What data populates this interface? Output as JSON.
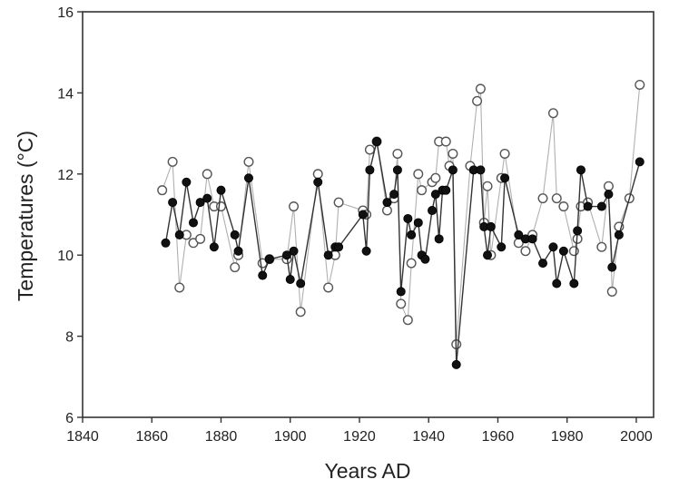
{
  "chart_data": {
    "type": "scatter",
    "xlabel": "Years AD",
    "ylabel": "Temperatures (°C)",
    "xlim": [
      1840,
      2005
    ],
    "ylim": [
      6,
      16
    ],
    "x_ticks": [
      1840,
      1860,
      1880,
      1900,
      1920,
      1940,
      1960,
      1980,
      2000
    ],
    "y_ticks": [
      6,
      8,
      10,
      12,
      14,
      16
    ],
    "grid": false,
    "series": [
      {
        "marker": "filled-circle",
        "line_color": "#333333",
        "marker_color": "#111111",
        "points": [
          [
            1864,
            10.3
          ],
          [
            1866,
            11.3
          ],
          [
            1868,
            10.5
          ],
          [
            1870,
            11.8
          ],
          [
            1872,
            10.8
          ],
          [
            1874,
            11.3
          ],
          [
            1876,
            11.4
          ],
          [
            1878,
            10.2
          ],
          [
            1880,
            11.6
          ],
          [
            1884,
            10.5
          ],
          [
            1885,
            10.1
          ],
          [
            1888,
            11.9
          ],
          [
            1892,
            9.5
          ],
          [
            1894,
            9.9
          ],
          [
            1899,
            10.0
          ],
          [
            1900,
            9.4
          ],
          [
            1901,
            10.1
          ],
          [
            1903,
            9.3
          ],
          [
            1908,
            11.8
          ],
          [
            1911,
            10.0
          ],
          [
            1913,
            10.2
          ],
          [
            1914,
            10.2
          ],
          [
            1921,
            11.0
          ],
          [
            1922,
            10.1
          ],
          [
            1923,
            12.1
          ],
          [
            1925,
            12.8
          ],
          [
            1928,
            11.3
          ],
          [
            1930,
            11.5
          ],
          [
            1931,
            12.1
          ],
          [
            1932,
            9.1
          ],
          [
            1934,
            10.9
          ],
          [
            1935,
            10.5
          ],
          [
            1937,
            10.8
          ],
          [
            1938,
            10.0
          ],
          [
            1939,
            9.9
          ],
          [
            1941,
            11.1
          ],
          [
            1942,
            11.5
          ],
          [
            1943,
            10.4
          ],
          [
            1944,
            11.6
          ],
          [
            1945,
            11.6
          ],
          [
            1947,
            12.1
          ],
          [
            1948,
            7.3
          ],
          [
            1953,
            12.1
          ],
          [
            1955,
            12.1
          ],
          [
            1956,
            10.7
          ],
          [
            1957,
            10.0
          ],
          [
            1958,
            10.7
          ],
          [
            1961,
            10.2
          ],
          [
            1962,
            11.9
          ],
          [
            1966,
            10.5
          ],
          [
            1968,
            10.4
          ],
          [
            1970,
            10.4
          ],
          [
            1973,
            9.8
          ],
          [
            1976,
            10.2
          ],
          [
            1977,
            9.3
          ],
          [
            1979,
            10.1
          ],
          [
            1982,
            9.3
          ],
          [
            1983,
            10.6
          ],
          [
            1984,
            12.1
          ],
          [
            1986,
            11.2
          ],
          [
            1990,
            11.2
          ],
          [
            1992,
            11.5
          ],
          [
            1993,
            9.7
          ],
          [
            1995,
            10.5
          ],
          [
            2001,
            12.3
          ]
        ]
      },
      {
        "marker": "open-circle",
        "line_color": "#b0b0b0",
        "marker_color": "#555555",
        "points": [
          [
            1863,
            11.6
          ],
          [
            1866,
            12.3
          ],
          [
            1868,
            9.2
          ],
          [
            1870,
            10.5
          ],
          [
            1872,
            10.3
          ],
          [
            1874,
            10.4
          ],
          [
            1876,
            12.0
          ],
          [
            1878,
            11.2
          ],
          [
            1880,
            11.2
          ],
          [
            1884,
            9.7
          ],
          [
            1885,
            10.0
          ],
          [
            1888,
            12.3
          ],
          [
            1892,
            9.8
          ],
          [
            1894,
            9.9
          ],
          [
            1899,
            9.9
          ],
          [
            1901,
            11.2
          ],
          [
            1903,
            8.6
          ],
          [
            1908,
            12.0
          ],
          [
            1911,
            9.2
          ],
          [
            1913,
            10.0
          ],
          [
            1914,
            11.3
          ],
          [
            1921,
            11.1
          ],
          [
            1922,
            11.0
          ],
          [
            1923,
            12.6
          ],
          [
            1925,
            12.8
          ],
          [
            1928,
            11.1
          ],
          [
            1930,
            11.4
          ],
          [
            1931,
            12.5
          ],
          [
            1932,
            8.8
          ],
          [
            1934,
            8.4
          ],
          [
            1935,
            9.8
          ],
          [
            1937,
            12.0
          ],
          [
            1938,
            11.6
          ],
          [
            1941,
            11.8
          ],
          [
            1942,
            11.9
          ],
          [
            1943,
            12.8
          ],
          [
            1945,
            12.8
          ],
          [
            1946,
            12.2
          ],
          [
            1947,
            12.5
          ],
          [
            1948,
            7.8
          ],
          [
            1952,
            12.2
          ],
          [
            1954,
            13.8
          ],
          [
            1955,
            14.1
          ],
          [
            1956,
            10.8
          ],
          [
            1957,
            11.7
          ],
          [
            1958,
            10.0
          ],
          [
            1961,
            11.9
          ],
          [
            1962,
            12.5
          ],
          [
            1966,
            10.3
          ],
          [
            1968,
            10.1
          ],
          [
            1970,
            10.5
          ],
          [
            1973,
            11.4
          ],
          [
            1976,
            13.5
          ],
          [
            1977,
            11.4
          ],
          [
            1979,
            11.2
          ],
          [
            1982,
            10.1
          ],
          [
            1983,
            10.4
          ],
          [
            1984,
            11.2
          ],
          [
            1986,
            11.3
          ],
          [
            1990,
            10.2
          ],
          [
            1992,
            11.7
          ],
          [
            1993,
            9.1
          ],
          [
            1995,
            10.7
          ],
          [
            1998,
            11.4
          ],
          [
            2001,
            14.2
          ]
        ]
      }
    ]
  }
}
